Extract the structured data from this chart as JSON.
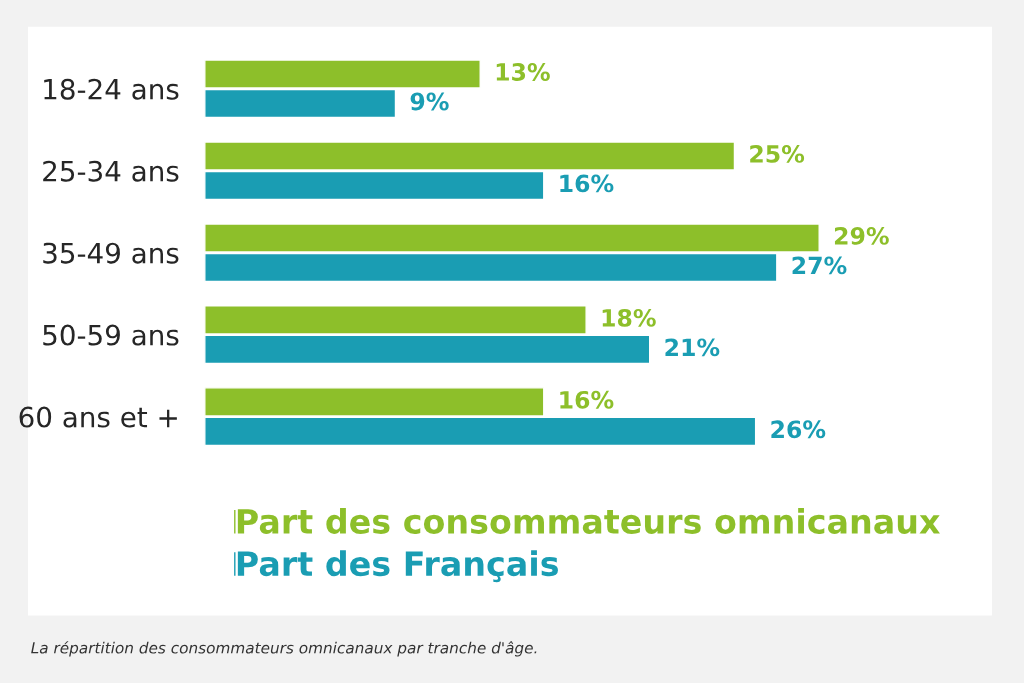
{
  "chart_data": {
    "type": "bar",
    "orientation": "horizontal",
    "categories": [
      "18-24 ans",
      "25-34 ans",
      "35-49 ans",
      "50-59 ans",
      "60 ans et +"
    ],
    "series": [
      {
        "name": "Part des consommateurs omnicanaux",
        "color": "#8dbf2a",
        "values": [
          13,
          25,
          29,
          18,
          16
        ],
        "value_labels": [
          "13%",
          "25%",
          "29%",
          "18%",
          "16%"
        ]
      },
      {
        "name": "Part des Français",
        "color": "#1a9db3",
        "values": [
          9,
          16,
          27,
          21,
          26
        ],
        "value_labels": [
          "9%",
          "16%",
          "27%",
          "21%",
          "26%"
        ]
      }
    ],
    "legend": "bottom",
    "grid": false,
    "tick_labels": "y",
    "annotations": [
      "La répartition des consommateurs omnicanaux par tranche d'âge."
    ]
  }
}
